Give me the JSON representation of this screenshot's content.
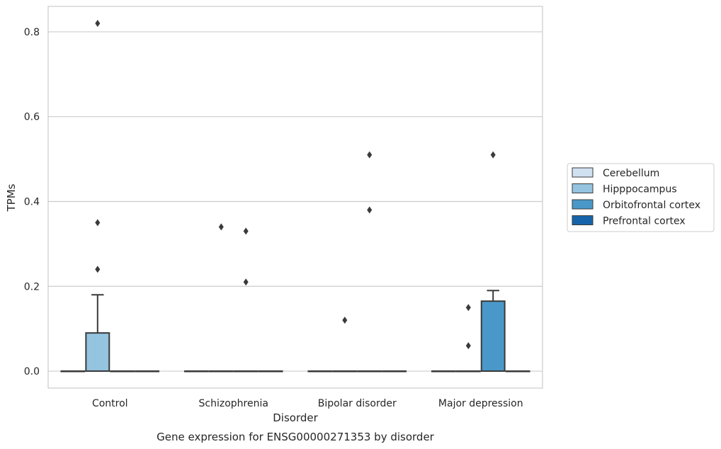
{
  "chart_data": {
    "type": "boxplot",
    "title": "",
    "caption": "Gene expression for ENSG00000271353 by disorder",
    "xlabel": "Disorder",
    "ylabel": "TPMs",
    "ylim": [
      -0.04,
      0.86
    ],
    "yticks": [
      0.0,
      0.2,
      0.4,
      0.6,
      0.8
    ],
    "ytick_labels": [
      "0.0",
      "0.2",
      "0.4",
      "0.6",
      "0.8"
    ],
    "categories": [
      "Control",
      "Schizophrenia",
      "Bipolar disorder",
      "Major depression"
    ],
    "grid": "horizontal",
    "legend_position": "right",
    "series": [
      {
        "name": "Cerebellum",
        "color": "#d0e1f2",
        "boxes": [
          {
            "q1": 0,
            "median": 0,
            "q3": 0,
            "whisker_low": 0,
            "whisker_high": 0,
            "outliers": []
          },
          {
            "q1": 0,
            "median": 0,
            "q3": 0,
            "whisker_low": 0,
            "whisker_high": 0,
            "outliers": []
          },
          {
            "q1": 0,
            "median": 0,
            "q3": 0,
            "whisker_low": 0,
            "whisker_high": 0,
            "outliers": []
          },
          {
            "q1": 0,
            "median": 0,
            "q3": 0,
            "whisker_low": 0,
            "whisker_high": 0,
            "outliers": []
          }
        ]
      },
      {
        "name": "Hipppocampus",
        "color": "#94c4df",
        "boxes": [
          {
            "q1": 0,
            "median": 0,
            "q3": 0.09,
            "whisker_low": 0,
            "whisker_high": 0.18,
            "outliers": [
              0.82,
              0.35,
              0.24
            ]
          },
          {
            "q1": 0,
            "median": 0,
            "q3": 0,
            "whisker_low": 0,
            "whisker_high": 0,
            "outliers": [
              0.34
            ]
          },
          {
            "q1": 0,
            "median": 0,
            "q3": 0,
            "whisker_low": 0,
            "whisker_high": 0,
            "outliers": [
              0.12
            ]
          },
          {
            "q1": 0,
            "median": 0,
            "q3": 0,
            "whisker_low": 0,
            "whisker_high": 0,
            "outliers": [
              0.15,
              0.06
            ]
          }
        ]
      },
      {
        "name": "Orbitofrontal cortex",
        "color": "#4a98c9",
        "boxes": [
          {
            "q1": 0,
            "median": 0,
            "q3": 0,
            "whisker_low": 0,
            "whisker_high": 0,
            "outliers": []
          },
          {
            "q1": 0,
            "median": 0,
            "q3": 0,
            "whisker_low": 0,
            "whisker_high": 0,
            "outliers": [
              0.33,
              0.21
            ]
          },
          {
            "q1": 0,
            "median": 0,
            "q3": 0,
            "whisker_low": 0,
            "whisker_high": 0,
            "outliers": [
              0.51,
              0.38
            ]
          },
          {
            "q1": 0,
            "median": 0,
            "q3": 0.165,
            "whisker_low": 0,
            "whisker_high": 0.19,
            "outliers": [
              0.51
            ]
          }
        ]
      },
      {
        "name": "Prefrontal cortex",
        "color": "#1764ab",
        "boxes": [
          {
            "q1": 0,
            "median": 0,
            "q3": 0,
            "whisker_low": 0,
            "whisker_high": 0,
            "outliers": []
          },
          {
            "q1": 0,
            "median": 0,
            "q3": 0,
            "whisker_low": 0,
            "whisker_high": 0,
            "outliers": []
          },
          {
            "q1": 0,
            "median": 0,
            "q3": 0,
            "whisker_low": 0,
            "whisker_high": 0,
            "outliers": []
          },
          {
            "q1": 0,
            "median": 0,
            "q3": 0,
            "whisker_low": 0,
            "whisker_high": 0,
            "outliers": []
          }
        ]
      }
    ],
    "style": {
      "box_edge_color": "#3a3a3a",
      "grid_color": "#cccccc",
      "frame_color": "#cccccc",
      "text_color": "#262626"
    }
  }
}
